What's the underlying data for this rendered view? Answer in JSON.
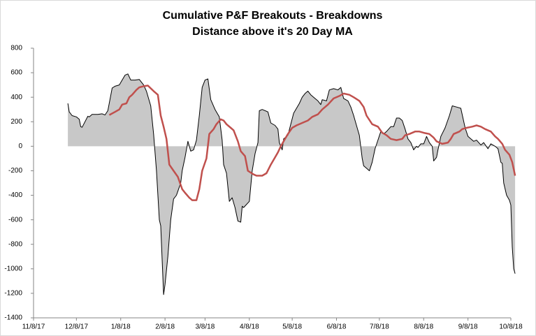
{
  "chart_data": {
    "type": "line",
    "title": "Cumulative P&F Breakouts - Breakdowns",
    "subtitle": "Distance above it's 20 Day MA",
    "xlim": [
      "11/8/17",
      "10/8/18"
    ],
    "xticks": [
      "11/8/17",
      "12/8/17",
      "1/8/18",
      "2/8/18",
      "3/8/18",
      "4/8/18",
      "5/8/18",
      "6/8/18",
      "7/8/18",
      "8/8/18",
      "9/8/18",
      "10/8/18"
    ],
    "ylim": [
      -1400,
      800
    ],
    "yticks": [
      -1400,
      -1200,
      -1000,
      -800,
      -600,
      -400,
      -200,
      0,
      200,
      400,
      600,
      800
    ],
    "grid": false,
    "series": [
      {
        "color": "#000000",
        "fill": "#c8c8c8",
        "x": [
          "12/2/17",
          "12/3/17",
          "12/5/17",
          "12/8/17",
          "12/10/17",
          "12/11/17",
          "12/12/17",
          "12/14/17",
          "12/16/17",
          "12/17/17",
          "12/19/17",
          "12/23/17",
          "12/26/17",
          "12/28/17",
          "12/30/17",
          "1/2/18",
          "1/4/18",
          "1/7/18",
          "1/9/18",
          "1/11/18",
          "1/13/18",
          "1/15/18",
          "1/18/18",
          "1/21/18",
          "1/24/18",
          "1/26/18",
          "1/29/18",
          "1/31/18",
          "2/2/18",
          "2/4/18",
          "2/5/18",
          "2/7/18",
          "2/8/18",
          "2/10/18",
          "2/12/18",
          "2/14/18",
          "2/16/18",
          "2/19/18",
          "2/20/18",
          "2/22/18",
          "2/24/18",
          "2/26/18",
          "2/28/18",
          "3/2/18",
          "3/4/18",
          "3/6/18",
          "3/8/18",
          "3/10/18",
          "3/12/18",
          "3/15/18",
          "3/18/18",
          "3/20/18",
          "3/21/18",
          "3/23/18",
          "3/25/18",
          "3/27/18",
          "3/29/18",
          "3/31/18",
          "4/2/18",
          "4/3/18",
          "4/4/18",
          "4/8/18",
          "4/10/18",
          "4/12/18",
          "4/14/18",
          "4/15/18",
          "4/17/18",
          "4/21/18",
          "4/23/18",
          "4/26/18",
          "4/28/18",
          "4/29/18",
          "5/1/18",
          "5/2/18",
          "5/5/18",
          "5/7/18",
          "5/9/18",
          "5/11/18",
          "5/13/18",
          "5/15/18",
          "5/17/18",
          "5/19/18",
          "5/21/18",
          "5/23/18",
          "5/26/18",
          "5/28/18",
          "5/29/18",
          "6/1/18",
          "6/3/18",
          "6/6/18",
          "6/9/18",
          "6/11/18",
          "6/13/18",
          "6/16/18",
          "6/18/18",
          "6/20/18",
          "6/22/18",
          "6/24/18",
          "6/26/18",
          "6/27/18",
          "6/29/18",
          "7/1/18",
          "7/3/18",
          "7/5/18",
          "7/7/18",
          "7/9/18",
          "7/11/18",
          "7/13/18",
          "7/16/18",
          "7/18/18",
          "7/20/18",
          "7/22/18",
          "7/24/18",
          "7/26/18",
          "7/28/18",
          "7/30/18",
          "8/1/18",
          "8/3/18",
          "8/4/18",
          "8/6/18",
          "8/8/18",
          "8/10/18",
          "8/12/18",
          "8/14/18",
          "8/15/18",
          "8/17/18",
          "8/18/18",
          "8/20/18",
          "8/23/18",
          "8/26/18",
          "8/28/18",
          "8/31/18",
          "9/3/18",
          "9/6/18",
          "9/8/18",
          "9/10/18",
          "9/12/18",
          "9/14/18",
          "9/17/18",
          "9/19/18",
          "9/22/18",
          "9/24/18",
          "9/27/18",
          "9/29/18",
          "10/1/18",
          "10/2/18",
          "10/3/18",
          "10/5/18",
          "10/7/18",
          "10/8/18",
          "10/9/18",
          "10/10/18",
          "10/11/18"
        ],
        "values": [
          350,
          280,
          250,
          240,
          220,
          160,
          155,
          200,
          245,
          240,
          260,
          260,
          265,
          255,
          290,
          475,
          490,
          500,
          540,
          580,
          590,
          540,
          540,
          545,
          500,
          450,
          330,
          100,
          -200,
          -600,
          -650,
          -1210,
          -1130,
          -900,
          -600,
          -430,
          -400,
          -300,
          -200,
          -90,
          40,
          -40,
          -30,
          50,
          250,
          480,
          540,
          550,
          380,
          300,
          240,
          50,
          -150,
          -220,
          -450,
          -420,
          -500,
          -610,
          -620,
          -490,
          -500,
          -450,
          -200,
          -60,
          30,
          290,
          300,
          280,
          190,
          170,
          140,
          30,
          -30,
          60,
          90,
          180,
          270,
          310,
          350,
          400,
          430,
          450,
          420,
          400,
          370,
          340,
          380,
          370,
          460,
          470,
          460,
          480,
          390,
          370,
          320,
          250,
          170,
          90,
          -100,
          -160,
          -180,
          -200,
          -130,
          -20,
          50,
          120,
          100,
          120,
          160,
          160,
          230,
          230,
          210,
          140,
          60,
          30,
          -30,
          0,
          -10,
          20,
          20,
          80,
          30,
          0,
          -120,
          -90,
          -30,
          80,
          150,
          250,
          330,
          320,
          310,
          150,
          80,
          60,
          40,
          50,
          10,
          30,
          -20,
          20,
          0,
          -20,
          -130,
          -140,
          -300,
          -400,
          -440,
          -480,
          -820,
          -1000,
          -1040
        ]
      },
      {
        "color": "#c0504d",
        "x": [
          "12/31/17",
          "1/4/18",
          "1/7/18",
          "1/9/18",
          "1/12/18",
          "1/14/18",
          "1/16/18",
          "1/19/18",
          "1/21/18",
          "1/24/18",
          "1/27/18",
          "1/31/18",
          "2/3/18",
          "2/5/18",
          "2/7/18",
          "2/9/18",
          "2/11/18",
          "2/14/18",
          "2/17/18",
          "2/20/18",
          "2/22/18",
          "2/25/18",
          "2/27/18",
          "3/2/18",
          "3/4/18",
          "3/6/18",
          "3/9/18",
          "3/11/18",
          "3/14/18",
          "3/16/18",
          "3/19/18",
          "3/21/18",
          "3/23/18",
          "3/26/18",
          "3/28/18",
          "3/31/18",
          "4/2/18",
          "4/5/18",
          "4/7/18",
          "4/11/18",
          "4/13/18",
          "4/17/18",
          "4/20/18",
          "4/23/18",
          "4/26/18",
          "4/28/18",
          "4/30/18",
          "5/3/18",
          "5/5/18",
          "5/8/18",
          "5/11/18",
          "5/15/18",
          "5/19/18",
          "5/22/18",
          "5/26/18",
          "5/29/18",
          "6/2/18",
          "6/6/18",
          "6/10/18",
          "6/13/18",
          "6/17/18",
          "6/20/18",
          "6/24/18",
          "6/27/18",
          "6/29/18",
          "7/3/18",
          "7/7/18",
          "7/10/18",
          "7/13/18",
          "7/16/18",
          "7/20/18",
          "7/24/18",
          "7/26/18",
          "7/29/18",
          "8/2/18",
          "8/5/18",
          "8/8/18",
          "8/12/18",
          "8/15/18",
          "8/17/18",
          "8/21/18",
          "8/25/18",
          "8/27/18",
          "8/29/18",
          "9/2/18",
          "9/4/18",
          "9/7/18",
          "9/11/18",
          "9/14/18",
          "9/17/18",
          "9/20/18",
          "9/24/18",
          "9/27/18",
          "9/29/18",
          "10/2/18",
          "10/4/18",
          "10/7/18",
          "10/9/18",
          "10/11/18"
        ],
        "values": [
          255,
          280,
          300,
          340,
          350,
          400,
          420,
          460,
          480,
          490,
          495,
          450,
          420,
          250,
          160,
          60,
          -150,
          -200,
          -250,
          -350,
          -380,
          -420,
          -440,
          -440,
          -350,
          -200,
          -100,
          100,
          140,
          180,
          220,
          210,
          180,
          150,
          130,
          40,
          -40,
          -80,
          -200,
          -230,
          -240,
          -240,
          -220,
          -150,
          -90,
          -50,
          0,
          60,
          100,
          150,
          170,
          190,
          210,
          240,
          260,
          300,
          340,
          390,
          410,
          430,
          420,
          400,
          370,
          320,
          250,
          180,
          160,
          110,
          90,
          60,
          50,
          60,
          90,
          100,
          120,
          120,
          110,
          100,
          70,
          40,
          20,
          30,
          60,
          100,
          120,
          140,
          150,
          160,
          170,
          160,
          140,
          120,
          80,
          60,
          20,
          -30,
          -70,
          -130,
          -240
        ]
      }
    ]
  }
}
